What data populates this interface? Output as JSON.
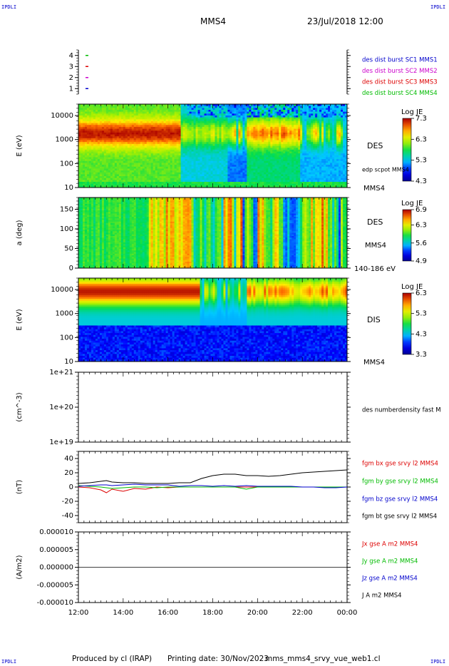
{
  "header": {
    "corner_tl": "IPDLI",
    "corner_tr": "IPDLI",
    "corner_bl": "IPDLI",
    "corner_br": "IPDLI",
    "spacecraft": "MMS4",
    "datetime": "23/Jul/2018 12:00"
  },
  "footer": {
    "produced_by": "Produced by cl (IRAP)",
    "printing_date": "Printing date: 30/Nov/2023",
    "script": "mms_mms4_srvy_vue_web1.cl"
  },
  "colors": {
    "blue": "#0000cc",
    "magenta": "#cc00cc",
    "red": "#dd0000",
    "green": "#00bb00",
    "black": "#000000"
  },
  "chart_data": [
    {
      "type": "scatter",
      "panel": "burst-availability",
      "ylim": [
        0.5,
        4.5
      ],
      "yticks": [
        "1",
        "2",
        "3",
        "4"
      ],
      "series": [
        {
          "name": "des dist burst SC1 MMS1",
          "color": "#0000cc",
          "x": [
            "12:15"
          ],
          "y": [
            1
          ]
        },
        {
          "name": "des dist burst SC2 MMS2",
          "color": "#cc00cc",
          "x": [
            "12:15"
          ],
          "y": [
            2
          ]
        },
        {
          "name": "des dist burst SC3 MMS3",
          "color": "#dd0000",
          "x": [
            "12:15"
          ],
          "y": [
            3
          ]
        },
        {
          "name": "des dist burst SC4 MMS4",
          "color": "#00bb00",
          "x": [
            "12:15"
          ],
          "y": [
            4
          ]
        }
      ]
    },
    {
      "type": "heatmap",
      "panel": "des-energy",
      "ylabel": "E (eV)",
      "yscale": "log",
      "ylim": [
        10,
        30000
      ],
      "yticks": [
        "10",
        "100",
        "1000",
        "10000"
      ],
      "right_labels": [
        "DES",
        "edp scpot MMS4",
        "MMS4"
      ],
      "colorbar": {
        "label": "Log JE",
        "ticks": [
          "7.3",
          "6.3",
          "5.3",
          "4.3"
        ],
        "range": [
          4.3,
          7.3
        ]
      },
      "description_values": {
        "peak_energy_eV_12_to_16h": 1500,
        "peak_log_je": 7.3
      }
    },
    {
      "type": "heatmap",
      "panel": "des-pitch-angle",
      "ylabel": "a (deg)",
      "ylim": [
        0,
        180
      ],
      "yticks": [
        "0",
        "50",
        "100",
        "150"
      ],
      "right_labels": [
        "DES",
        "MMS4",
        "140-186 eV"
      ],
      "colorbar": {
        "label": "Log JE",
        "ticks": [
          "6.9",
          "6.3",
          "5.6",
          "4.9"
        ],
        "range": [
          4.9,
          6.9
        ]
      }
    },
    {
      "type": "heatmap",
      "panel": "dis-energy",
      "ylabel": "E (eV)",
      "yscale": "log",
      "ylim": [
        10,
        30000
      ],
      "yticks": [
        "10",
        "100",
        "1000",
        "10000"
      ],
      "right_labels": [
        "DIS",
        "MMS4"
      ],
      "colorbar": {
        "label": "Log JE",
        "ticks": [
          "6.3",
          "5.3",
          "4.3",
          "3.3"
        ],
        "range": [
          3.3,
          6.3
        ]
      }
    },
    {
      "type": "line",
      "panel": "density",
      "ylabel": "(cm^-3)",
      "yscale": "log",
      "ylim": [
        1e+19,
        1e+21
      ],
      "yticks": [
        "1e+19",
        "1e+20",
        "1e+21"
      ],
      "series": [
        {
          "name": "des numberdensity fast M",
          "color": "#000000",
          "x": [],
          "y": []
        }
      ]
    },
    {
      "type": "line",
      "panel": "magnetic-field",
      "ylabel": "(nT)",
      "ylim": [
        -50,
        50
      ],
      "yticks": [
        "-40",
        "-20",
        "0",
        "20",
        "40"
      ],
      "x": [
        "12:00",
        "12:30",
        "13:00",
        "13:15",
        "13:30",
        "14:00",
        "14:30",
        "15:00",
        "15:30",
        "16:00",
        "16:30",
        "17:00",
        "17:30",
        "18:00",
        "18:30",
        "19:00",
        "19:30",
        "20:00",
        "20:30",
        "21:00",
        "21:30",
        "22:00",
        "22:30",
        "23:00",
        "23:30",
        "00:00"
      ],
      "series": [
        {
          "name": "fgm bx gse srvy l2 MMS4",
          "color": "#dd0000",
          "y": [
            0,
            -1,
            -4,
            -8,
            -3,
            -6,
            -2,
            -3,
            0,
            -1,
            0,
            0,
            0,
            0,
            0,
            0,
            0,
            0,
            0,
            0,
            0,
            0,
            0,
            0,
            0,
            0
          ]
        },
        {
          "name": "fgm by gse srvy l2 MMS4",
          "color": "#00bb00",
          "y": [
            2,
            1,
            0,
            -1,
            -2,
            -1,
            0,
            0,
            -1,
            0,
            0,
            0,
            0,
            0,
            0,
            0,
            -3,
            0,
            0,
            0,
            0,
            0,
            0,
            0,
            0,
            0
          ]
        },
        {
          "name": "fgm bz gse srvy l2 MMS4",
          "color": "#0000cc",
          "y": [
            1,
            2,
            3,
            3,
            2,
            3,
            4,
            3,
            3,
            3,
            1,
            2,
            2,
            1,
            2,
            1,
            2,
            1,
            1,
            1,
            1,
            0,
            0,
            -1,
            -1,
            0
          ]
        },
        {
          "name": "fgm bt gse srvy l2 MMS4",
          "color": "#000000",
          "y": [
            5,
            6,
            8,
            9,
            7,
            6,
            6,
            5,
            5,
            5,
            6,
            6,
            12,
            16,
            18,
            18,
            16,
            16,
            15,
            16,
            18,
            20,
            21,
            22,
            23,
            24
          ]
        }
      ]
    },
    {
      "type": "line",
      "panel": "current-density",
      "ylabel": "(A/m2)",
      "ylim": [
        -1e-05,
        1e-05
      ],
      "yticks": [
        "-0.000010",
        "-0.000005",
        "0.000000",
        "0.000005",
        "0.000010"
      ],
      "xticks": [
        "12:00",
        "14:00",
        "16:00",
        "18:00",
        "20:00",
        "22:00",
        "00:00"
      ],
      "series": [
        {
          "name": "Jx gse A m2 MMS4",
          "color": "#dd0000",
          "y": [
            0
          ]
        },
        {
          "name": "Jy gse A m2 MMS4",
          "color": "#00bb00",
          "y": [
            0
          ]
        },
        {
          "name": "Jz gse A m2 MMS4",
          "color": "#0000cc",
          "y": [
            0
          ]
        },
        {
          "name": "J A m2 MMS4",
          "color": "#000000",
          "y": [
            0
          ]
        }
      ]
    }
  ]
}
